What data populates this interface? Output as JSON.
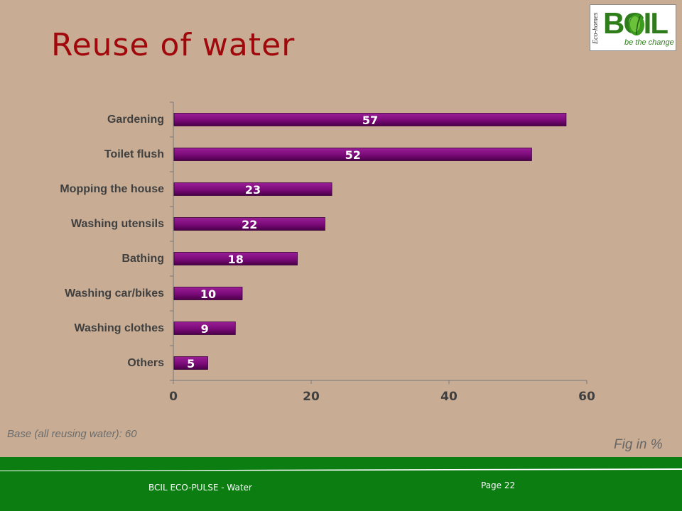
{
  "slide": {
    "title": "Reuse of water",
    "base_note": "Base (all reusing water): 60",
    "fig_note": "Fig in %",
    "footer_left": "BCIL ECO-PULSE - Water",
    "footer_right": "Page 22"
  },
  "logo": {
    "brand": "BCIL",
    "tagline": "be the change",
    "side_text": "Eco-homes"
  },
  "colors": {
    "background": "#c8ad94",
    "title": "#a0080c",
    "bar": "#7a0a78",
    "bar_label": "#ffffff",
    "footer": "#0b7d11"
  },
  "chart_data": {
    "type": "bar",
    "orientation": "horizontal",
    "categories": [
      "Gardening",
      "Toilet flush",
      "Mopping the house",
      "Washing utensils",
      "Bathing",
      "Washing car/bikes",
      "Washing clothes",
      "Others"
    ],
    "values": [
      57,
      52,
      23,
      22,
      18,
      10,
      9,
      5
    ],
    "xlim": [
      0,
      60
    ],
    "xticks": [
      0,
      20,
      40,
      60
    ],
    "grid": false,
    "legend": "none"
  }
}
